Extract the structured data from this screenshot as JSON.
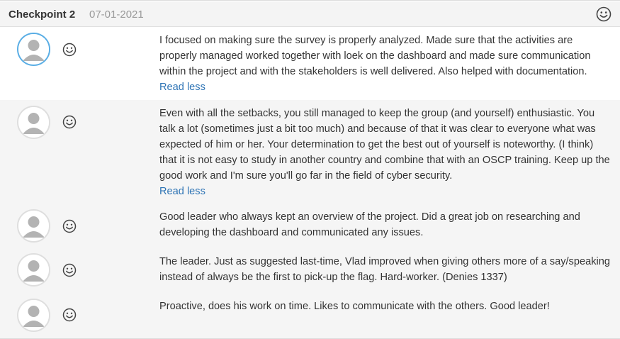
{
  "checkpoint": {
    "title": "Checkpoint 2",
    "date": "07-01-2021",
    "icon": "smiley-icon"
  },
  "feedback": [
    {
      "avatar_icon": "user-avatar-icon",
      "mood_icon": "smiley-icon",
      "text": "I focused on making sure the survey is properly analyzed. Made sure that the activities are properly managed worked together with loek on the dashboard and made sure communication within the project and with the stakeholders is well delivered. Also helped with documentation.",
      "link": "Read less"
    },
    {
      "avatar_icon": "user-avatar-icon",
      "mood_icon": "smiley-icon",
      "text": "Even with all the setbacks, you still managed to keep the group (and yourself) enthusiastic. You talk a lot (sometimes just a bit too much) and because of that it was clear to everyone what was expected of him or her. Your determination to get the best out of yourself is noteworthy. (I think) that it is not easy to study in another country and combine that with an OSCP training. Keep up the good work and I'm sure you'll go far in the field of cyber security.",
      "link": "Read less"
    },
    {
      "avatar_icon": "user-avatar-icon",
      "mood_icon": "smiley-icon",
      "text": "Good leader who always kept an overview of the project. Did a great job on researching and developing the dashboard and communicated any issues."
    },
    {
      "avatar_icon": "user-avatar-icon",
      "mood_icon": "smiley-icon",
      "text": "The leader. Just as suggested last-time, Vlad improved when giving others more of a say/speaking instead of always be the first to pick-up the flag. Hard-worker. (Denies 1337)"
    },
    {
      "avatar_icon": "user-avatar-icon",
      "mood_icon": "smiley-icon",
      "text": "Proactive, does his work on time. Likes to communicate with the others. Good leader!"
    }
  ],
  "colors": {
    "link": "#2e74b5",
    "active_avatar_border": "#5aaee5",
    "shaded_row": "#f5f5f5"
  }
}
